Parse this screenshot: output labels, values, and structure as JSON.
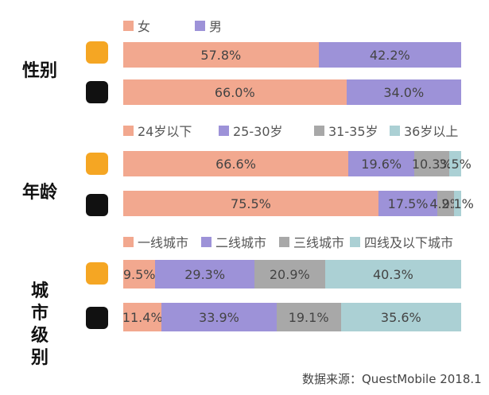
{
  "charts": [
    {
      "type": "stacked-bar",
      "title": "性别",
      "categories": [
        null,
        null
      ],
      "series": [
        {
          "name": "女",
          "color": "#f2a88f",
          "values": [
            57.8,
            66.0
          ],
          "value_labels": [
            "57.8%",
            "66.0%"
          ]
        },
        {
          "name": "男",
          "color": "#9d92d8",
          "values": [
            42.2,
            34.0
          ],
          "value_labels": [
            "42.2%",
            "34.0%"
          ]
        }
      ]
    },
    {
      "type": "stacked-bar",
      "title": "年龄",
      "categories": [
        null,
        null
      ],
      "series": [
        {
          "name": "24岁以下",
          "color": "#f2a88f",
          "values": [
            66.6,
            75.5
          ],
          "value_labels": [
            "66.6%",
            "75.5%"
          ]
        },
        {
          "name": "25-30岁",
          "color": "#9d92d8",
          "values": [
            19.6,
            17.5
          ],
          "value_labels": [
            "19.6%",
            "17.5%"
          ]
        },
        {
          "name": "31-35岁",
          "color": "#a8a8a8",
          "values": [
            10.3,
            4.9
          ],
          "value_labels": [
            "10.3%",
            "4.9%"
          ]
        },
        {
          "name": "36岁以上",
          "color": "#abd0d4",
          "values": [
            3.5,
            2.1
          ],
          "value_labels": [
            "3.5%",
            "2.1%"
          ]
        }
      ]
    },
    {
      "type": "stacked-bar",
      "title": "城市级别",
      "categories": [
        null,
        null
      ],
      "series": [
        {
          "name": "一线城市",
          "color": "#f2a88f",
          "values": [
            9.5,
            11.4
          ],
          "value_labels": [
            "9.5%",
            "11.4%"
          ]
        },
        {
          "name": "二线城市",
          "color": "#9d92d8",
          "values": [
            29.3,
            33.9
          ],
          "value_labels": [
            "29.3%",
            "33.9%"
          ]
        },
        {
          "name": "三线城市",
          "color": "#a8a8a8",
          "values": [
            20.9,
            19.1
          ],
          "value_labels": [
            "20.9%",
            "19.1%"
          ]
        },
        {
          "name": "四线及以下城市",
          "color": "#abd0d4",
          "values": [
            40.3,
            35.6
          ],
          "value_labels": [
            "40.3%",
            "35.6%"
          ]
        }
      ]
    }
  ],
  "source": "数据来源：QuestMobile 2018.1"
}
